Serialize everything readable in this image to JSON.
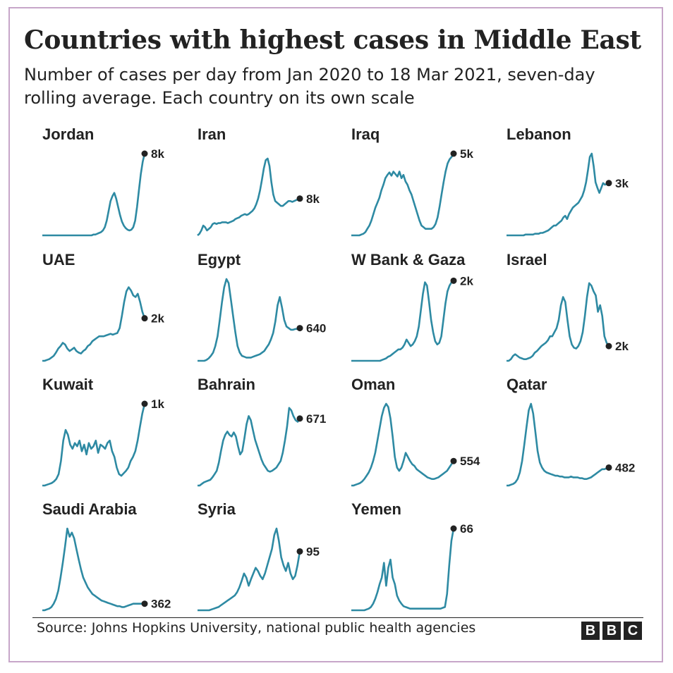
{
  "title": "Countries with highest cases in Middle East",
  "subtitle": "Number of cases per day from Jan 2020 to 18 Mar 2021, seven-day rolling average. Each country on its own scale",
  "source": "Source: Johns Hopkins University, national public health agencies",
  "logo_letters": [
    "B",
    "B",
    "C"
  ],
  "colors": {
    "line": "#2e8aa3",
    "marker": "#222222",
    "text": "#222222",
    "frame": "#c7a6c9"
  },
  "chart_data": [
    {
      "type": "line",
      "name": "Jordan",
      "end_label": "8k",
      "ylim": [
        0,
        100
      ],
      "y": [
        0,
        0,
        0,
        0,
        0,
        0,
        0,
        0,
        0,
        0,
        0,
        0,
        0,
        0,
        0,
        0,
        0,
        0,
        0,
        0,
        0,
        0,
        0,
        0,
        0,
        0,
        0,
        1,
        1,
        2,
        3,
        4,
        6,
        10,
        18,
        30,
        42,
        48,
        52,
        45,
        35,
        25,
        17,
        12,
        9,
        7,
        6,
        7,
        10,
        18,
        35,
        55,
        75,
        90,
        100
      ]
    },
    {
      "type": "line",
      "name": "Iran",
      "end_label": "8k",
      "ylim": [
        0,
        100
      ],
      "y": [
        0,
        2,
        6,
        12,
        10,
        6,
        8,
        10,
        14,
        15,
        14,
        15,
        15,
        16,
        16,
        16,
        15,
        16,
        17,
        18,
        20,
        21,
        22,
        24,
        25,
        26,
        25,
        26,
        28,
        30,
        33,
        38,
        45,
        55,
        68,
        82,
        92,
        94,
        85,
        65,
        50,
        42,
        40,
        38,
        36,
        36,
        38,
        40,
        42,
        42,
        41,
        42,
        43,
        44,
        45
      ]
    },
    {
      "type": "line",
      "name": "Iraq",
      "end_label": "5k",
      "ylim": [
        0,
        100
      ],
      "y": [
        0,
        0,
        0,
        0,
        0,
        1,
        2,
        4,
        8,
        12,
        18,
        26,
        34,
        40,
        46,
        55,
        62,
        70,
        74,
        77,
        73,
        78,
        75,
        72,
        78,
        70,
        74,
        66,
        62,
        55,
        50,
        42,
        34,
        26,
        18,
        12,
        10,
        8,
        8,
        8,
        8,
        10,
        14,
        22,
        35,
        50,
        65,
        78,
        88,
        93,
        96,
        100
      ]
    },
    {
      "type": "line",
      "name": "Lebanon",
      "end_label": "3k",
      "ylim": [
        0,
        100
      ],
      "y": [
        0,
        0,
        0,
        0,
        0,
        0,
        0,
        0,
        0,
        0,
        1,
        1,
        1,
        1,
        1,
        2,
        2,
        2,
        3,
        3,
        4,
        5,
        6,
        8,
        10,
        12,
        12,
        14,
        16,
        18,
        22,
        24,
        20,
        26,
        30,
        34,
        36,
        38,
        40,
        44,
        48,
        55,
        65,
        80,
        96,
        100,
        85,
        65,
        58,
        52,
        58,
        64,
        62,
        63,
        64
      ]
    },
    {
      "type": "line",
      "name": "UAE",
      "end_label": "2k",
      "ylim": [
        0,
        100
      ],
      "y": [
        0,
        0,
        1,
        2,
        4,
        6,
        10,
        15,
        18,
        22,
        20,
        15,
        12,
        14,
        16,
        12,
        10,
        9,
        12,
        14,
        18,
        20,
        24,
        26,
        28,
        30,
        30,
        30,
        31,
        32,
        33,
        32,
        33,
        34,
        40,
        55,
        72,
        85,
        90,
        86,
        80,
        78,
        82,
        72,
        60,
        52
      ]
    },
    {
      "type": "line",
      "name": "Egypt",
      "end_label": "640",
      "ylim": [
        0,
        100
      ],
      "y": [
        0,
        0,
        0,
        0,
        1,
        3,
        6,
        10,
        18,
        30,
        50,
        72,
        90,
        100,
        95,
        75,
        55,
        35,
        18,
        10,
        6,
        5,
        4,
        4,
        4,
        5,
        6,
        7,
        8,
        10,
        12,
        16,
        20,
        26,
        34,
        48,
        68,
        78,
        65,
        50,
        42,
        40,
        38,
        38,
        39,
        39,
        40
      ]
    },
    {
      "type": "line",
      "name": "W Bank & Gaza",
      "end_label": "2k",
      "ylim": [
        0,
        100
      ],
      "y": [
        0,
        0,
        0,
        0,
        0,
        0,
        0,
        0,
        0,
        0,
        0,
        0,
        0,
        0,
        0,
        1,
        2,
        3,
        5,
        6,
        8,
        10,
        12,
        14,
        14,
        16,
        20,
        26,
        22,
        18,
        20,
        24,
        30,
        42,
        62,
        82,
        96,
        92,
        72,
        50,
        35,
        24,
        20,
        22,
        30,
        50,
        70,
        85,
        92,
        96,
        98
      ]
    },
    {
      "type": "line",
      "name": "Israel",
      "end_label": "2k",
      "ylim": [
        0,
        100
      ],
      "y": [
        0,
        0,
        2,
        6,
        8,
        6,
        4,
        3,
        2,
        2,
        3,
        4,
        6,
        10,
        12,
        15,
        18,
        20,
        22,
        25,
        30,
        30,
        35,
        40,
        50,
        68,
        78,
        72,
        50,
        30,
        20,
        16,
        15,
        18,
        24,
        35,
        55,
        78,
        95,
        92,
        85,
        80,
        60,
        68,
        55,
        30,
        22,
        18
      ]
    },
    {
      "type": "line",
      "name": "Kuwait",
      "end_label": "1k",
      "ylim": [
        0,
        100
      ],
      "y": [
        0,
        0,
        1,
        2,
        3,
        5,
        8,
        14,
        30,
        55,
        68,
        62,
        50,
        45,
        52,
        48,
        55,
        42,
        50,
        38,
        52,
        45,
        48,
        55,
        40,
        50,
        48,
        45,
        52,
        55,
        42,
        35,
        22,
        14,
        12,
        15,
        18,
        22,
        30,
        35,
        42,
        55,
        72,
        88,
        100
      ]
    },
    {
      "type": "line",
      "name": "Bahrain",
      "end_label": "671",
      "ylim": [
        0,
        100
      ],
      "y": [
        0,
        0,
        2,
        4,
        5,
        6,
        7,
        10,
        14,
        18,
        28,
        42,
        55,
        62,
        66,
        62,
        60,
        65,
        60,
        48,
        38,
        42,
        58,
        75,
        85,
        80,
        68,
        56,
        48,
        40,
        32,
        26,
        22,
        18,
        17,
        18,
        20,
        22,
        26,
        30,
        40,
        55,
        72,
        95,
        92,
        85,
        80,
        78,
        82
      ]
    },
    {
      "type": "line",
      "name": "Oman",
      "end_label": "554",
      "ylim": [
        0,
        100
      ],
      "y": [
        0,
        0,
        1,
        2,
        3,
        5,
        8,
        12,
        16,
        22,
        30,
        40,
        55,
        70,
        85,
        95,
        100,
        96,
        82,
        60,
        35,
        22,
        18,
        22,
        30,
        40,
        35,
        30,
        26,
        24,
        20,
        18,
        16,
        14,
        12,
        10,
        9,
        8,
        8,
        9,
        10,
        12,
        14,
        16,
        18,
        22,
        26,
        30
      ]
    },
    {
      "type": "line",
      "name": "Qatar",
      "end_label": "482",
      "ylim": [
        0,
        100
      ],
      "y": [
        0,
        0,
        1,
        2,
        4,
        8,
        16,
        30,
        50,
        72,
        92,
        100,
        88,
        65,
        42,
        28,
        22,
        18,
        16,
        15,
        14,
        13,
        12,
        12,
        11,
        11,
        10,
        10,
        10,
        11,
        10,
        10,
        10,
        9,
        9,
        8,
        8,
        9,
        10,
        12,
        14,
        16,
        18,
        20,
        20,
        21,
        22
      ]
    },
    {
      "type": "line",
      "name": "Saudi Arabia",
      "end_label": "362",
      "ylim": [
        0,
        100
      ],
      "y": [
        0,
        0,
        1,
        2,
        4,
        8,
        14,
        24,
        40,
        58,
        78,
        100,
        90,
        95,
        88,
        75,
        62,
        50,
        40,
        34,
        28,
        24,
        20,
        18,
        16,
        14,
        12,
        11,
        10,
        9,
        8,
        7,
        6,
        5,
        5,
        4,
        4,
        5,
        6,
        7,
        8,
        8,
        8,
        8,
        8,
        8
      ]
    },
    {
      "type": "line",
      "name": "Syria",
      "end_label": "95",
      "ylim": [
        0,
        100
      ],
      "y": [
        0,
        0,
        0,
        0,
        0,
        0,
        1,
        2,
        3,
        4,
        6,
        8,
        10,
        12,
        14,
        16,
        18,
        22,
        28,
        36,
        45,
        40,
        30,
        38,
        45,
        52,
        48,
        42,
        38,
        45,
        55,
        65,
        75,
        92,
        100,
        85,
        65,
        55,
        48,
        58,
        45,
        38,
        42,
        55,
        72
      ]
    },
    {
      "type": "line",
      "name": "Yemen",
      "end_label": "66",
      "ylim": [
        0,
        100
      ],
      "y": [
        0,
        0,
        0,
        0,
        0,
        0,
        0,
        1,
        2,
        4,
        8,
        14,
        22,
        32,
        40,
        58,
        30,
        52,
        62,
        40,
        32,
        18,
        12,
        8,
        5,
        4,
        3,
        2,
        2,
        2,
        2,
        2,
        2,
        2,
        2,
        2,
        2,
        2,
        2,
        2,
        2,
        2,
        3,
        4,
        20,
        55,
        85,
        100
      ]
    }
  ]
}
